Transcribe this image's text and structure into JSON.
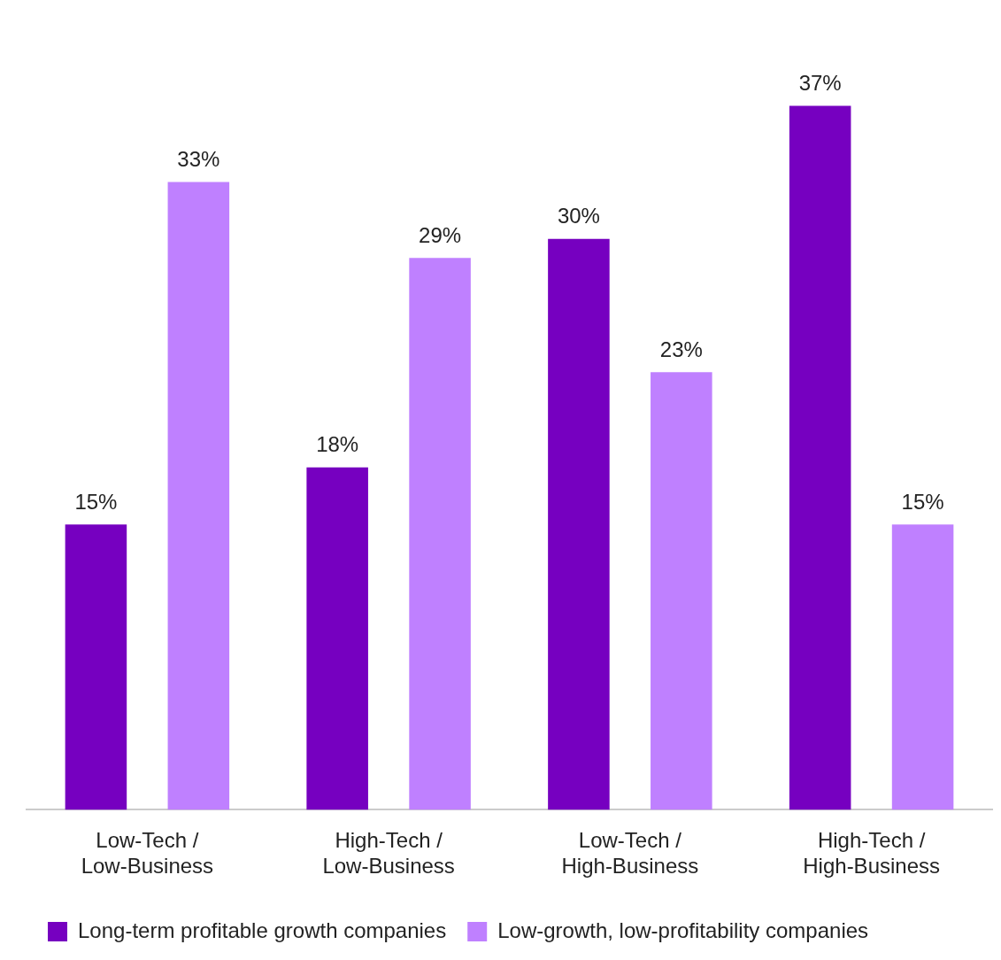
{
  "chart_data": {
    "type": "bar",
    "categories": [
      "Low-Tech / Low-Business",
      "High-Tech / Low-Business",
      "Low-Tech / High-Business",
      "High-Tech / High-Business"
    ],
    "series": [
      {
        "name": "Long-term profitable growth companies",
        "color": "#7600c0",
        "values": [
          15,
          18,
          30,
          37
        ],
        "value_labels": [
          "15%",
          "18%",
          "30%",
          "37%"
        ]
      },
      {
        "name": "Low-growth, low-profitability companies",
        "color": "#bf80ff",
        "values": [
          33,
          29,
          23,
          15
        ],
        "value_labels": [
          "33%",
          "29%",
          "23%",
          "15%"
        ]
      }
    ],
    "tick_labels": "x",
    "grid": false,
    "legend": "bottom"
  }
}
